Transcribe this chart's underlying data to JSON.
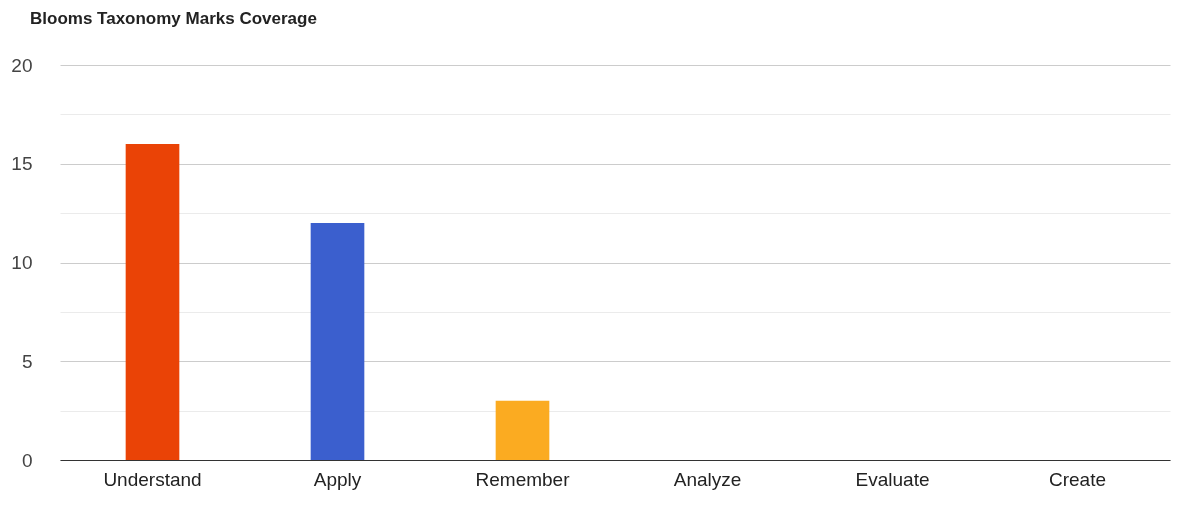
{
  "chart_data": {
    "type": "bar",
    "title": "Blooms Taxonomy Marks Coverage",
    "categories": [
      "Understand",
      "Apply",
      "Remember",
      "Analyze",
      "Evaluate",
      "Create"
    ],
    "values": [
      16,
      12,
      3,
      0,
      0,
      0
    ],
    "colors": [
      "#ea4306",
      "#3b5fce",
      "#fbab21",
      "#3b5fce",
      "#3b5fce",
      "#3b5fce"
    ],
    "ylim": [
      0,
      20
    ],
    "yticks": [
      0,
      {
        "value": 2.5,
        "label": null
      },
      5,
      {
        "value": 7.5,
        "label": null
      },
      10,
      {
        "value": 12.5,
        "label": null
      },
      15,
      {
        "value": 17.5,
        "label": null
      },
      20
    ],
    "grid": true
  }
}
